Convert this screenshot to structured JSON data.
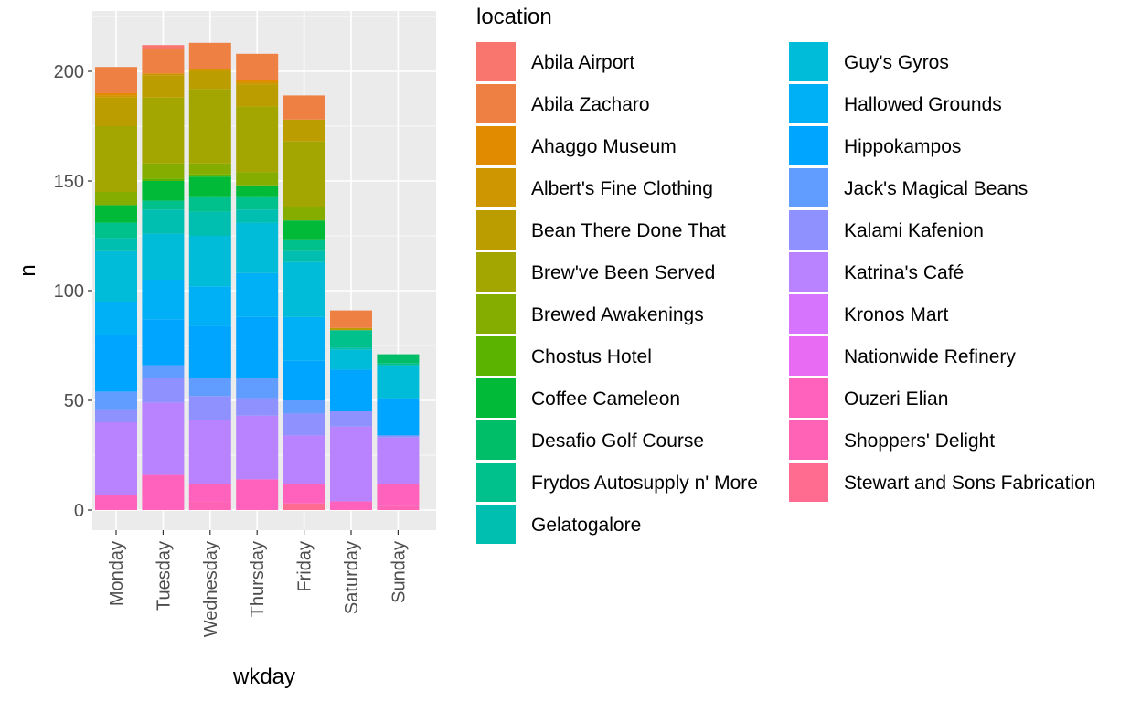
{
  "chart_data": {
    "type": "bar",
    "stacked": true,
    "xlabel": "wkday",
    "ylabel": "n",
    "ylim": [
      0,
      225
    ],
    "yticks": [
      0,
      50,
      100,
      150,
      200
    ],
    "grid": true,
    "legend_position": "right",
    "legend_title": "location",
    "categories": [
      "Monday",
      "Tuesday",
      "Wednesday",
      "Thursday",
      "Friday",
      "Saturday",
      "Sunday"
    ],
    "series": [
      {
        "name": "Abila Airport",
        "color": "#F8766D",
        "values": [
          0,
          2,
          0,
          0,
          0,
          0,
          0
        ]
      },
      {
        "name": "Abila Zacharo",
        "color": "#EE8043",
        "values": [
          12,
          11,
          12,
          12,
          11,
          8,
          0
        ]
      },
      {
        "name": "Ahaggo Museum",
        "color": "#E08B00",
        "values": [
          1,
          0,
          0,
          1,
          0,
          0,
          0
        ]
      },
      {
        "name": "Albert's Fine Clothing",
        "color": "#CE9600",
        "values": [
          1,
          1,
          1,
          1,
          0,
          0,
          0
        ]
      },
      {
        "name": "Bean There Done That",
        "color": "#BB9D00",
        "values": [
          13,
          10,
          8,
          10,
          10,
          1,
          0
        ]
      },
      {
        "name": "Brew've Been Served",
        "color": "#A3A500",
        "values": [
          30,
          30,
          34,
          30,
          30,
          0,
          0
        ]
      },
      {
        "name": "Brewed Awakenings",
        "color": "#85AD00",
        "values": [
          6,
          7,
          5,
          6,
          6,
          0,
          0
        ]
      },
      {
        "name": "Chostus Hotel",
        "color": "#5BB300",
        "values": [
          0,
          1,
          1,
          0,
          0,
          0,
          0
        ]
      },
      {
        "name": "Coffee Cameleon",
        "color": "#00BA38",
        "values": [
          8,
          9,
          9,
          5,
          9,
          0,
          0
        ]
      },
      {
        "name": "Desafio Golf Course",
        "color": "#00BE67",
        "values": [
          0,
          0,
          0,
          0,
          0,
          0,
          4
        ]
      },
      {
        "name": "Frydos Autosupply n' More",
        "color": "#00C08B",
        "values": [
          7,
          4,
          7,
          6,
          5,
          8,
          1
        ]
      },
      {
        "name": "Gelatogalore",
        "color": "#00BFB0",
        "values": [
          6,
          11,
          11,
          6,
          5,
          1,
          0
        ]
      },
      {
        "name": "Guy's Gyros",
        "color": "#00BCD8",
        "values": [
          23,
          21,
          23,
          23,
          25,
          9,
          15
        ]
      },
      {
        "name": "Hallowed Grounds",
        "color": "#00B0F6",
        "values": [
          15,
          18,
          18,
          20,
          20,
          0,
          0
        ]
      },
      {
        "name": "Hippokampos",
        "color": "#00A5FF",
        "values": [
          26,
          21,
          24,
          28,
          18,
          19,
          17
        ]
      },
      {
        "name": "Jack's Magical Beans",
        "color": "#619CFF",
        "values": [
          8,
          6,
          8,
          9,
          6,
          0,
          0
        ]
      },
      {
        "name": "Kalami Kafenion",
        "color": "#8F91FF",
        "values": [
          6,
          11,
          11,
          8,
          10,
          7,
          1
        ]
      },
      {
        "name": "Katrina's Café",
        "color": "#B983FF",
        "values": [
          33,
          33,
          29,
          29,
          22,
          34,
          21
        ]
      },
      {
        "name": "Kronos Mart",
        "color": "#D774FD",
        "values": [
          0,
          0,
          0,
          0,
          0,
          0,
          0
        ]
      },
      {
        "name": "Nationwide Refinery",
        "color": "#E76BF3",
        "values": [
          0,
          0,
          0,
          0,
          0,
          0,
          0
        ]
      },
      {
        "name": "Ouzeri Elian",
        "color": "#FF62BC",
        "values": [
          7,
          16,
          8,
          14,
          9,
          4,
          10
        ]
      },
      {
        "name": "Shoppers' Delight",
        "color": "#FF63B6",
        "values": [
          0,
          0,
          4,
          0,
          0,
          0,
          2
        ]
      },
      {
        "name": "Stewart and Sons Fabrication",
        "color": "#FF6C90",
        "values": [
          0,
          0,
          0,
          0,
          3,
          0,
          0
        ]
      }
    ]
  }
}
